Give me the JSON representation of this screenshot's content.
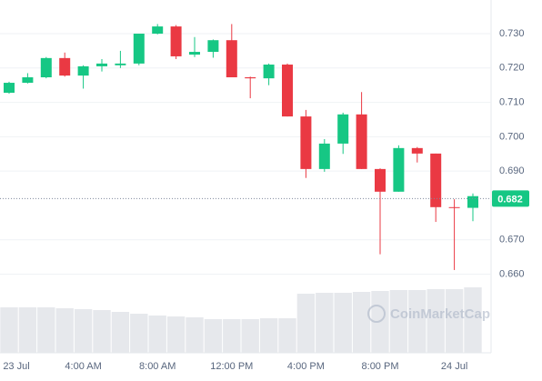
{
  "chart_data": {
    "type": "candlestick",
    "categories": [
      "23 Jul",
      null,
      null,
      null,
      "4:00 AM",
      null,
      null,
      null,
      "8:00 AM",
      null,
      null,
      null,
      "12:00 PM",
      null,
      null,
      null,
      "4:00 PM",
      null,
      null,
      null,
      "8:00 PM",
      null,
      null,
      null,
      "24 Jul",
      null
    ],
    "open": [
      0.7128,
      0.7157,
      0.7173,
      0.7229,
      0.7178,
      0.7205,
      0.7208,
      0.7213,
      0.73,
      0.7321,
      0.7239,
      0.7247,
      0.7281,
      0.7173,
      0.717,
      0.721,
      0.7059,
      0.6906,
      0.698,
      0.7065,
      0.6906,
      0.684,
      0.6967,
      0.6951,
      0.6795,
      0.6793
    ],
    "high": [
      0.716,
      0.7185,
      0.7232,
      0.7245,
      0.7208,
      0.7226,
      0.725,
      0.73,
      0.7328,
      0.7325,
      0.729,
      0.7283,
      0.7328,
      0.7175,
      0.7213,
      0.7213,
      0.7078,
      0.6993,
      0.707,
      0.713,
      0.6908,
      0.6975,
      0.697,
      0.6951,
      0.6818,
      0.6835
    ],
    "low": [
      0.7125,
      0.7155,
      0.717,
      0.7175,
      0.714,
      0.719,
      0.72,
      0.7208,
      0.7298,
      0.7226,
      0.7232,
      0.723,
      0.7173,
      0.7112,
      0.715,
      0.7059,
      0.688,
      0.6898,
      0.695,
      0.6906,
      0.6658,
      0.684,
      0.6925,
      0.6752,
      0.6612,
      0.6754
    ],
    "close": [
      0.7157,
      0.7173,
      0.7229,
      0.7178,
      0.7205,
      0.7213,
      0.7213,
      0.73,
      0.7321,
      0.7234,
      0.7247,
      0.7281,
      0.7173,
      0.717,
      0.721,
      0.7059,
      0.6906,
      0.698,
      0.7065,
      0.6906,
      0.684,
      0.6967,
      0.6951,
      0.6795,
      0.6793,
      0.6827
    ],
    "volume": [
      50,
      50,
      50,
      49,
      48,
      47,
      45,
      43,
      41,
      40,
      39,
      37,
      37,
      37,
      38,
      38,
      65,
      66,
      66,
      67,
      68,
      69,
      69,
      70,
      70,
      72
    ],
    "up_color": "#16c784",
    "down_color": "#ea3943",
    "volume_color": "#e6e8ec",
    "ylim": [
      0.6371,
      0.7398
    ],
    "yticks": [
      {
        "value": 0.66,
        "label": "0.660"
      },
      {
        "value": 0.67,
        "label": "0.670"
      },
      {
        "value": 0.69,
        "label": "0.690"
      },
      {
        "value": 0.7,
        "label": "0.700"
      },
      {
        "value": 0.71,
        "label": "0.710"
      },
      {
        "value": 0.72,
        "label": "0.720"
      },
      {
        "value": 0.73,
        "label": "0.730"
      }
    ],
    "grid": true,
    "current_price": 0.682,
    "watermark": "CoinMarketCap"
  }
}
